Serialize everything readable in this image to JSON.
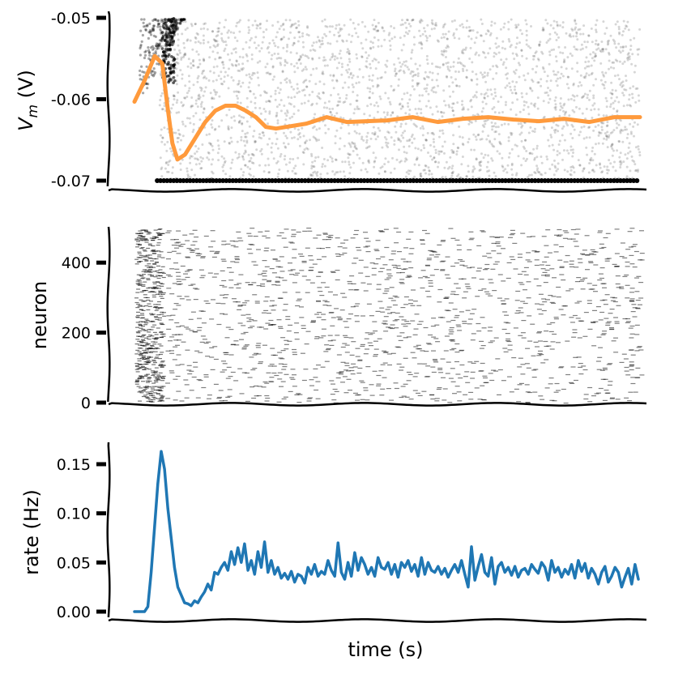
{
  "chart_data": [
    {
      "type": "scatter",
      "ylabel_main": "V",
      "ylabel_sub": "m",
      "ylabel_unit": " (V)",
      "ylim": [
        -0.0705,
        -0.0495
      ],
      "yticks": [
        -0.05,
        -0.06,
        -0.07
      ],
      "ytick_labels": [
        "-0.05",
        "-0.06",
        "-0.07"
      ],
      "grid": false,
      "colors": {
        "points": "#000000",
        "mean_line": "#ff9a3c"
      },
      "mean_line": {
        "t": [
          0.0,
          0.02,
          0.04,
          0.055,
          0.065,
          0.075,
          0.085,
          0.1,
          0.12,
          0.14,
          0.16,
          0.18,
          0.2,
          0.22,
          0.24,
          0.26,
          0.28,
          0.3,
          0.34,
          0.38,
          0.42,
          0.46,
          0.5,
          0.55,
          0.6,
          0.65,
          0.7,
          0.75,
          0.8,
          0.85,
          0.9,
          0.95,
          1.0
        ],
        "v": [
          -0.0603,
          -0.0577,
          -0.0547,
          -0.0556,
          -0.0608,
          -0.0654,
          -0.0674,
          -0.0668,
          -0.0648,
          -0.0628,
          -0.0614,
          -0.0608,
          -0.0608,
          -0.0614,
          -0.0622,
          -0.0634,
          -0.0636,
          -0.0634,
          -0.063,
          -0.0622,
          -0.0628,
          -0.0627,
          -0.0626,
          -0.0622,
          -0.0628,
          -0.0624,
          -0.0622,
          -0.0625,
          -0.0627,
          -0.0624,
          -0.0628,
          -0.0622,
          -0.0622
        ]
      }
    },
    {
      "type": "scatter",
      "ylabel": "neuron",
      "ylim": [
        0,
        500
      ],
      "yticks": [
        0,
        200,
        400
      ],
      "ytick_labels": [
        "0",
        "200",
        "400"
      ],
      "grid": false,
      "colors": {
        "spikes": "#000000"
      }
    },
    {
      "type": "line",
      "ylabel": "rate (Hz)",
      "xlabel": "time (s)",
      "ylim": [
        -0.004,
        0.172
      ],
      "yticks": [
        0.0,
        0.05,
        0.1,
        0.15
      ],
      "ytick_labels": [
        "0.00",
        "0.05",
        "0.10",
        "0.15"
      ],
      "grid": false,
      "colors": {
        "line": "#1f77b4"
      },
      "series": [
        {
          "values": [
            0.0,
            0.0,
            0.0,
            0.0,
            0.005,
            0.04,
            0.085,
            0.13,
            0.163,
            0.145,
            0.105,
            0.075,
            0.045,
            0.025,
            0.017,
            0.009,
            0.008,
            0.006,
            0.011,
            0.009,
            0.015,
            0.02,
            0.028,
            0.022,
            0.04,
            0.038,
            0.045,
            0.05,
            0.042,
            0.061,
            0.048,
            0.065,
            0.05,
            0.069,
            0.042,
            0.052,
            0.038,
            0.061,
            0.045,
            0.071,
            0.04,
            0.052,
            0.038,
            0.045,
            0.034,
            0.039,
            0.033,
            0.041,
            0.03,
            0.038,
            0.036,
            0.029,
            0.045,
            0.038,
            0.048,
            0.036,
            0.041,
            0.038,
            0.052,
            0.042,
            0.036,
            0.07,
            0.04,
            0.033,
            0.05,
            0.036,
            0.06,
            0.042,
            0.055,
            0.048,
            0.038,
            0.045,
            0.036,
            0.055,
            0.045,
            0.043,
            0.05,
            0.038,
            0.048,
            0.035,
            0.05,
            0.045,
            0.052,
            0.041,
            0.048,
            0.036,
            0.055,
            0.038,
            0.05,
            0.042,
            0.04,
            0.046,
            0.038,
            0.044,
            0.035,
            0.042,
            0.048,
            0.04,
            0.052,
            0.038,
            0.025,
            0.066,
            0.032,
            0.046,
            0.058,
            0.04,
            0.036,
            0.055,
            0.028,
            0.046,
            0.05,
            0.04,
            0.045,
            0.037,
            0.046,
            0.035,
            0.042,
            0.044,
            0.038,
            0.048,
            0.043,
            0.039,
            0.05,
            0.045,
            0.032,
            0.052,
            0.04,
            0.045,
            0.035,
            0.043,
            0.038,
            0.048,
            0.034,
            0.052,
            0.041,
            0.049,
            0.034,
            0.044,
            0.038,
            0.028,
            0.04,
            0.046,
            0.03,
            0.036,
            0.045,
            0.04,
            0.025,
            0.035,
            0.044,
            0.028,
            0.048,
            0.033
          ]
        }
      ]
    }
  ]
}
